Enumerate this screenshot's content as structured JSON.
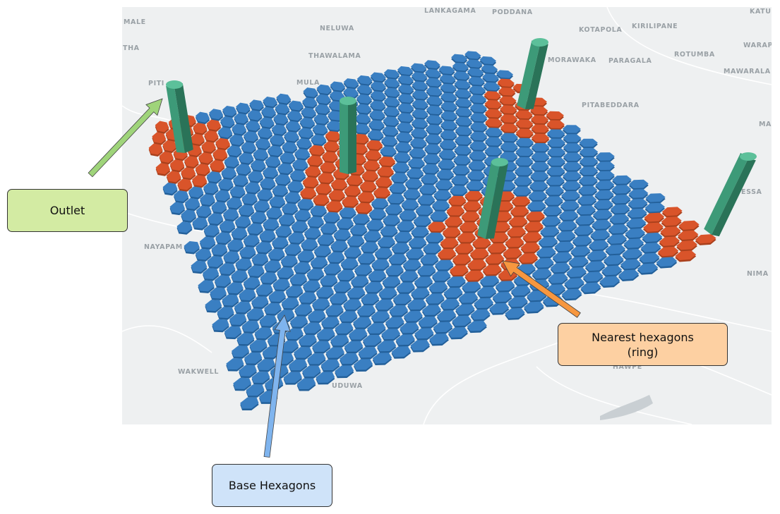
{
  "map": {
    "place_labels": [
      "MALE",
      "THA",
      "LANKAGAMA",
      "PODDANA",
      "KATUW",
      "NELUWA",
      "KOTAPOLA",
      "KIRILIPANE",
      "WARAP",
      "THAWALAMA",
      "MORAWAKA",
      "PARAGALA",
      "ROTUMBA",
      "MAWARALA",
      "PITI",
      "MULA",
      "PITABEDDARA",
      "MA",
      "ESSA",
      "NAYAPAM",
      "NIMA",
      "WAKWELL",
      "HAWPE",
      "UDUWA"
    ]
  },
  "callouts": {
    "outlet": "Outlet",
    "nearest": [
      "Nearest hexagons",
      "(ring)"
    ],
    "base": "Base Hexagons"
  }
}
